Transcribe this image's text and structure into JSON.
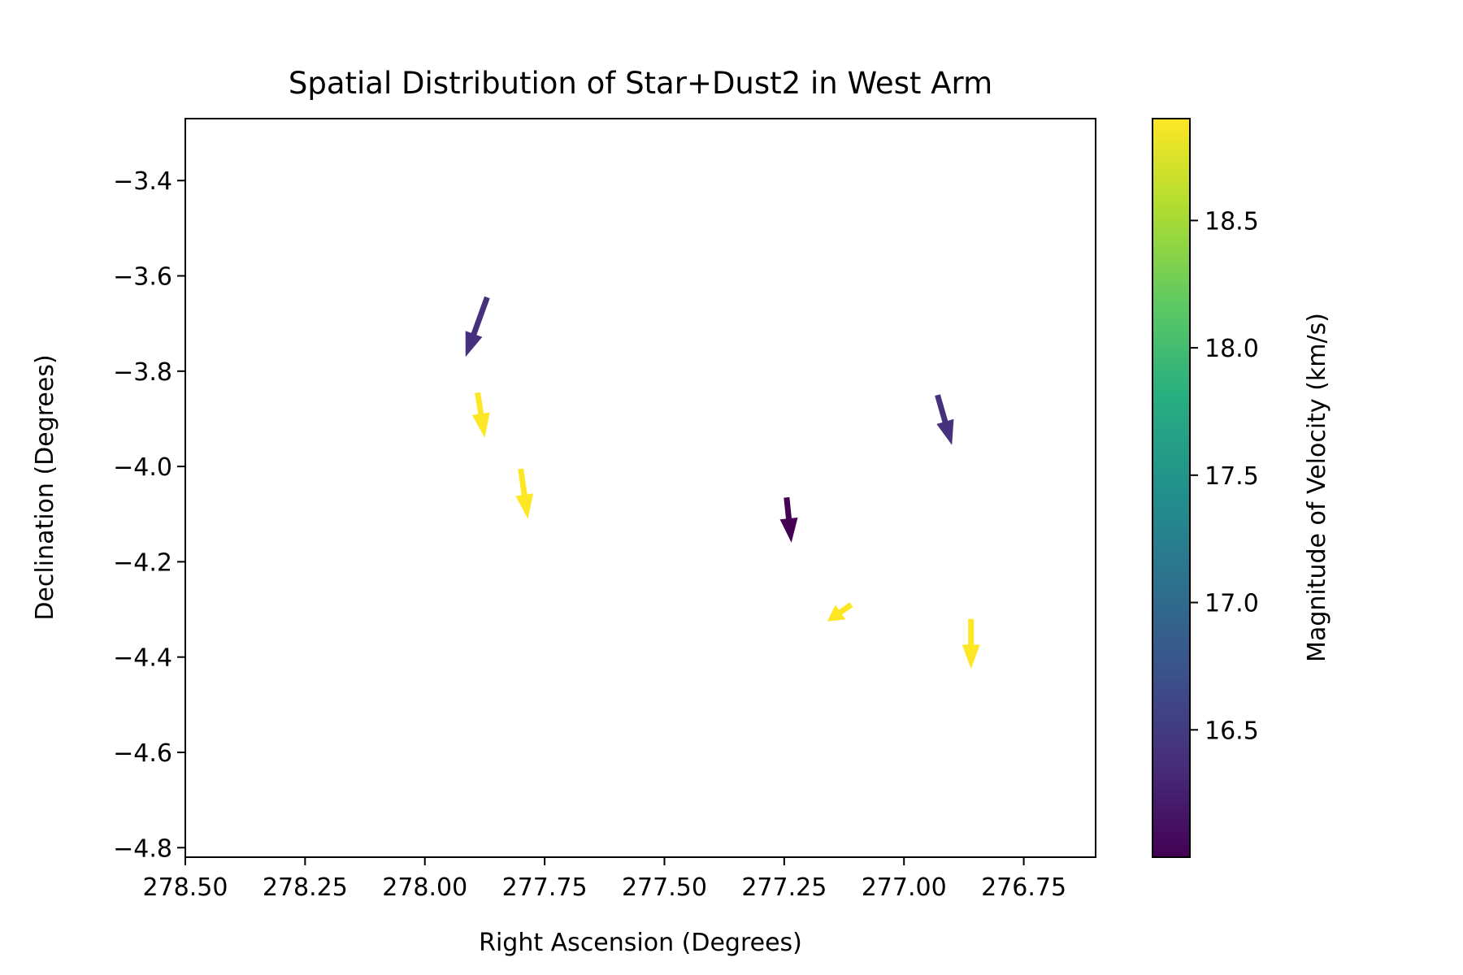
{
  "chart_data": {
    "type": "quiver",
    "title": "Spatial Distribution of Star+Dust2 in West Arm",
    "xlabel": "Right Ascension (Degrees)",
    "ylabel": "Declination (Degrees)",
    "xlim": [
      278.5,
      276.6
    ],
    "ylim": [
      -4.82,
      -3.27
    ],
    "x_inverted": true,
    "xticks": [
      278.5,
      278.25,
      278.0,
      277.75,
      277.5,
      277.25,
      277.0,
      276.75
    ],
    "xtick_labels": [
      "278.50",
      "278.25",
      "278.00",
      "277.75",
      "277.50",
      "277.25",
      "277.00",
      "276.75"
    ],
    "yticks": [
      -3.4,
      -3.6,
      -3.8,
      -4.0,
      -4.2,
      -4.4,
      -4.6,
      -4.8
    ],
    "ytick_labels": [
      "−3.4",
      "−3.6",
      "−3.8",
      "−4.0",
      "−4.2",
      "−4.4",
      "−4.6",
      "−4.8"
    ],
    "grid": false,
    "colormap": "viridis",
    "colorbar": {
      "label": "Magnitude of Velocity (km/s)",
      "range": [
        16.0,
        18.9
      ],
      "ticks": [
        16.5,
        17.0,
        17.5,
        18.0,
        18.5
      ],
      "tick_labels": [
        "16.5",
        "17.0",
        "17.5",
        "18.0",
        "18.5"
      ]
    },
    "vectors": [
      {
        "ra": 277.87,
        "dec": -3.645,
        "d_ra": 0.045,
        "d_dec": -0.125,
        "magnitude": 16.4
      },
      {
        "ra": 277.89,
        "dec": -3.845,
        "d_ra": -0.015,
        "d_dec": -0.095,
        "magnitude": 18.9
      },
      {
        "ra": 277.8,
        "dec": -4.005,
        "d_ra": -0.015,
        "d_dec": -0.105,
        "magnitude": 18.9
      },
      {
        "ra": 277.245,
        "dec": -4.065,
        "d_ra": -0.01,
        "d_dec": -0.095,
        "magnitude": 16.0
      },
      {
        "ra": 277.11,
        "dec": -4.29,
        "d_ra": 0.05,
        "d_dec": -0.035,
        "magnitude": 18.9
      },
      {
        "ra": 276.93,
        "dec": -3.85,
        "d_ra": -0.03,
        "d_dec": -0.105,
        "magnitude": 16.4
      },
      {
        "ra": 276.86,
        "dec": -4.32,
        "d_ra": 0.0,
        "d_dec": -0.105,
        "magnitude": 18.9
      }
    ]
  }
}
